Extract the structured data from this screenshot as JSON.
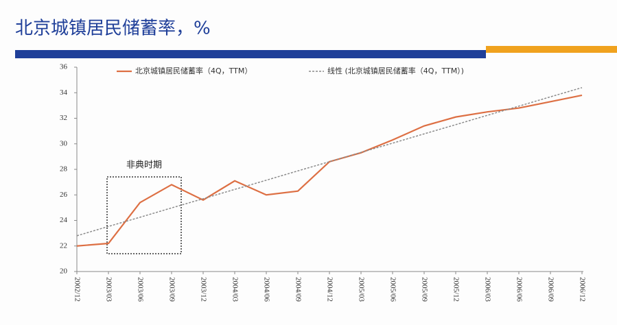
{
  "chart_data": {
    "type": "line",
    "title": "北京城镇居民储蓄率，%",
    "annotation": "非典时期",
    "categories": [
      "2002/12",
      "2003/03",
      "2003/06",
      "2003/09",
      "2003/12",
      "2004/03",
      "2004/06",
      "2004/09",
      "2004/12",
      "2005/03",
      "2005/06",
      "2005/09",
      "2005/12",
      "2006/03",
      "2006/06",
      "2006/09",
      "2006/12"
    ],
    "series": [
      {
        "name": "北京城镇居民储蓄率（4Q，TTM）",
        "color": "#dd6f43",
        "dashed": false,
        "values": [
          22.0,
          22.2,
          25.4,
          26.8,
          25.6,
          27.1,
          26.0,
          26.3,
          28.6,
          29.3,
          30.3,
          31.4,
          32.1,
          32.5,
          32.8,
          33.3,
          33.8
        ]
      },
      {
        "name": "线性 (北京城镇居民储蓄率（4Q，TTM）)",
        "color": "#8a8a8a",
        "dashed": true,
        "values": [
          22.8,
          23.53,
          24.25,
          24.98,
          25.7,
          26.43,
          27.15,
          27.88,
          28.6,
          29.33,
          30.05,
          30.78,
          31.5,
          32.23,
          32.95,
          33.68,
          34.4
        ]
      }
    ],
    "ylim": [
      20,
      36
    ],
    "yticks": [
      20,
      22,
      24,
      26,
      28,
      30,
      32,
      34,
      36
    ],
    "grid": false
  }
}
